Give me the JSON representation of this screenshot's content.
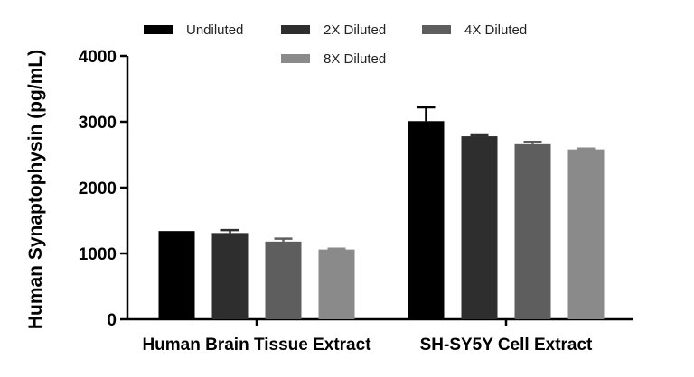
{
  "chart_data": {
    "type": "bar",
    "title": "",
    "xlabel": "",
    "ylabel": "Human Synaptophysin (pg/mL)",
    "ylim": [
      0,
      4000
    ],
    "yticks": [
      0,
      1000,
      2000,
      3000,
      4000
    ],
    "grid": false,
    "legend_position": "top",
    "categories": [
      "Human Brain Tissue Extract",
      "SH-SY5Y Cell Extract"
    ],
    "series": [
      {
        "name": "Undiluted",
        "color": "#000000",
        "values": [
          1340,
          3010
        ],
        "errors": [
          0,
          210
        ]
      },
      {
        "name": "2X Diluted",
        "color": "#2e2e2e",
        "values": [
          1310,
          2780
        ],
        "errors": [
          45,
          15
        ]
      },
      {
        "name": "4X Diluted",
        "color": "#5e5e5e",
        "values": [
          1180,
          2660
        ],
        "errors": [
          45,
          35
        ]
      },
      {
        "name": "8X Diluted",
        "color": "#8a8a8a",
        "values": [
          1060,
          2580
        ],
        "errors": [
          12,
          12
        ]
      }
    ]
  }
}
